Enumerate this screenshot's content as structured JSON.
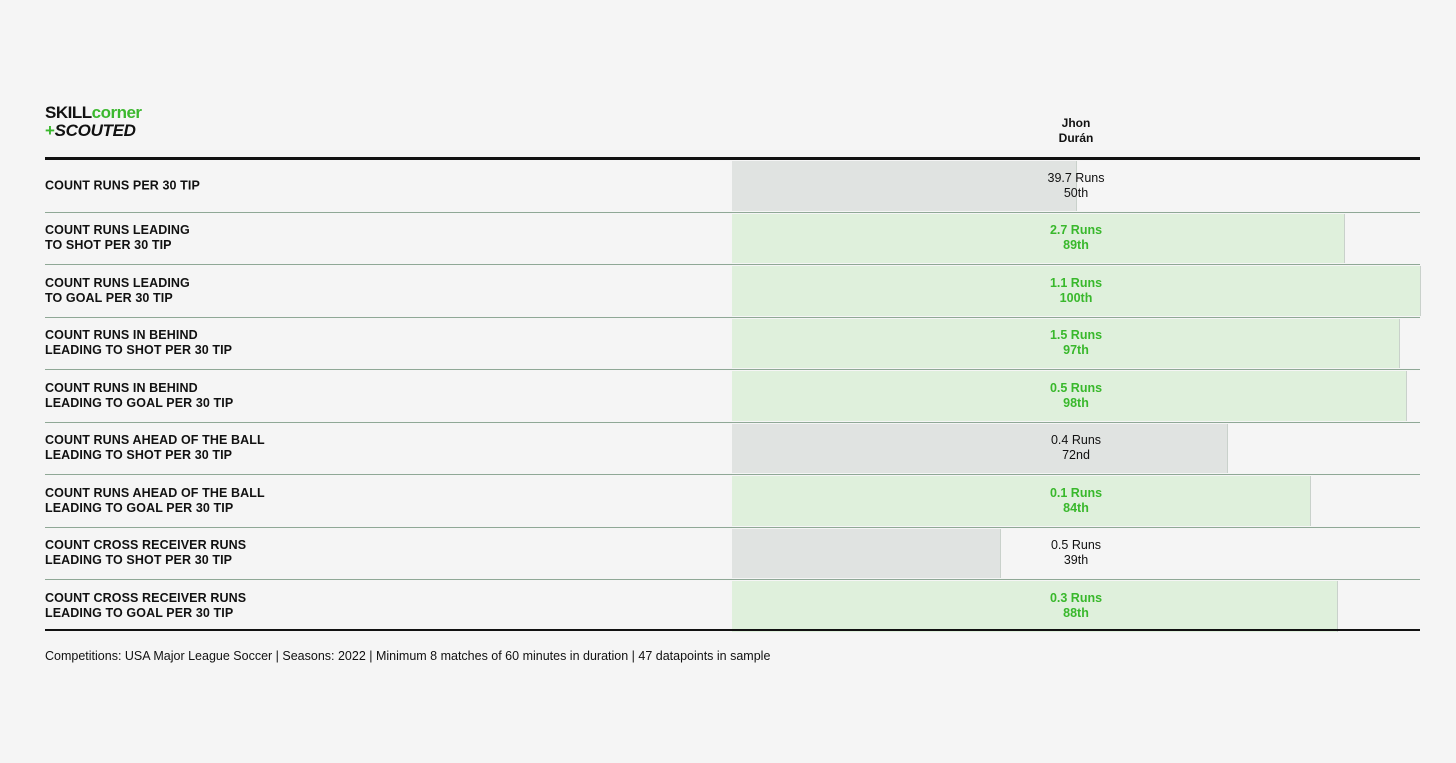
{
  "logo": {
    "line1_part1": "SKILL",
    "line1_part2": "corner",
    "line2_plus": "+",
    "line2_text": "SCOUTED"
  },
  "player": {
    "first_name": "Jhon",
    "last_name": "Durán"
  },
  "colors": {
    "above_average": "#39b82c",
    "above_average_bar": "#dff0dc",
    "below_average_bar": "#e0e3e1"
  },
  "chart_data": {
    "type": "bar",
    "orientation": "horizontal",
    "value_scale": "percentile",
    "xlim": [
      0,
      100
    ],
    "categories": [
      "COUNT RUNS PER 30 TIP",
      "COUNT RUNS LEADING\nTO SHOT PER 30 TIP",
      "COUNT RUNS LEADING\nTO GOAL PER 30 TIP",
      "COUNT RUNS IN BEHIND\nLEADING TO SHOT PER 30 TIP",
      "COUNT RUNS IN BEHIND\nLEADING TO GOAL PER 30 TIP",
      "COUNT RUNS AHEAD OF THE BALL\nLEADING TO SHOT PER 30 TIP",
      "COUNT RUNS AHEAD OF THE BALL\nLEADING TO GOAL PER 30 TIP",
      "COUNT CROSS RECEIVER RUNS\nLEADING TO SHOT PER 30 TIP",
      "COUNT CROSS RECEIVER RUNS\nLEADING TO GOAL PER 30 TIP"
    ],
    "series": [
      {
        "name": "Jhon Durán",
        "values": [
          50,
          89,
          100,
          97,
          98,
          72,
          84,
          39,
          88
        ],
        "value_labels": [
          "39.7 Runs",
          "2.7 Runs",
          "1.1 Runs",
          "1.5 Runs",
          "0.5 Runs",
          "0.4 Runs",
          "0.1 Runs",
          "0.5 Runs",
          "0.3 Runs"
        ],
        "percentile_labels": [
          "50th",
          "89th",
          "100th",
          "97th",
          "98th",
          "72nd",
          "84th",
          "39th",
          "88th"
        ],
        "highlight": [
          false,
          true,
          true,
          true,
          true,
          false,
          true,
          false,
          true
        ]
      }
    ]
  },
  "footnote": "Competitions: USA Major League Soccer | Seasons: 2022 | Minimum 8 matches of 60 minutes in duration | 47 datapoints in sample"
}
